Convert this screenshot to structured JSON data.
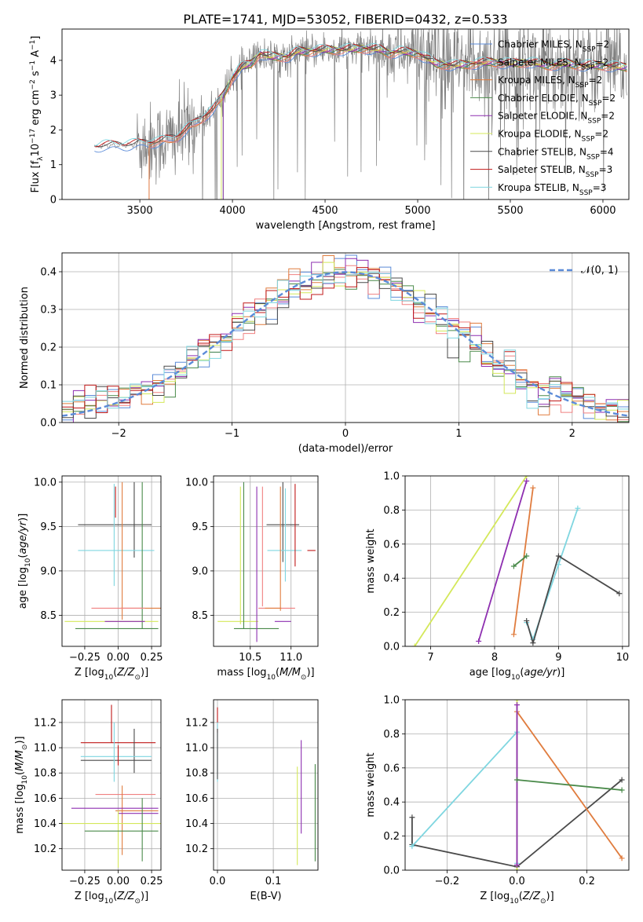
{
  "figure_title": "PLATE=1741, MJD=53052, FIBERID=0432, z=0.533",
  "colors": {
    "Chabrier MILES": "#5b8bd8",
    "Salpeter MILES": "#f08080",
    "Kroupa MILES": "#e07c3e",
    "Chabrier ELODIE": "#4a8a4a",
    "Salpeter ELODIE": "#8e2fb0",
    "Kroupa ELODIE": "#d4e85a",
    "Chabrier STELIB": "#4a4a4a",
    "Salpeter STELIB": "#c01818",
    "Kroupa STELIB": "#7fd6e0",
    "data": "#808080",
    "normal": "#5b8bd8"
  },
  "chart_data": [
    {
      "id": "spectrum",
      "type": "line",
      "title": "PLATE=1741, MJD=53052, FIBERID=0432, z=0.533",
      "xlabel": "wavelength [Angstrom, rest frame]",
      "ylabel": "Flux [f_λ 10^-17 erg cm^-2 s^-1 A^-1]",
      "xlim": [
        3080,
        6140
      ],
      "ylim": [
        0,
        4.9
      ],
      "xticks": [
        3500,
        4000,
        4500,
        5000,
        5500,
        6000
      ],
      "yticks": [
        0,
        1,
        2,
        3,
        4
      ],
      "grid": false,
      "legend": "top-right",
      "legend_entries": [
        "Chabrier MILES, N_SSP=2",
        "Salpeter MILES, N_SSP=2",
        "Kroupa MILES, N_SSP=2",
        "Chabrier ELODIE, N_SSP=2",
        "Salpeter ELODIE, N_SSP=2",
        "Kroupa ELODIE, N_SSP=2",
        "Chabrier STELIB, N_SSP=4",
        "Salpeter STELIB, N_SSP=3",
        "Kroupa STELIB, N_SSP=3"
      ],
      "model_continuum": [
        [
          3260,
          1.5
        ],
        [
          3300,
          1.55
        ],
        [
          3400,
          1.55
        ],
        [
          3500,
          1.6
        ],
        [
          3600,
          1.65
        ],
        [
          3700,
          1.8
        ],
        [
          3800,
          2.2
        ],
        [
          3900,
          2.6
        ],
        [
          3950,
          3.0
        ],
        [
          4000,
          3.5
        ],
        [
          4050,
          3.8
        ],
        [
          4100,
          3.9
        ],
        [
          4150,
          4.2
        ],
        [
          4200,
          4.1
        ],
        [
          4300,
          4.1
        ],
        [
          4350,
          4.25
        ],
        [
          4400,
          4.25
        ],
        [
          4500,
          4.3
        ],
        [
          4600,
          4.3
        ],
        [
          4700,
          4.35
        ],
        [
          4800,
          4.3
        ],
        [
          4850,
          4.2
        ],
        [
          4900,
          4.25
        ],
        [
          5000,
          4.2
        ],
        [
          5100,
          3.9
        ],
        [
          5200,
          3.85
        ],
        [
          5300,
          3.9
        ],
        [
          5400,
          3.95
        ],
        [
          5500,
          3.9
        ],
        [
          5600,
          3.95
        ],
        [
          5700,
          3.85
        ],
        [
          5800,
          3.9
        ],
        [
          5900,
          3.85
        ],
        [
          6000,
          3.85
        ],
        [
          6100,
          3.8
        ]
      ],
      "data_noise_start": 3480
    },
    {
      "id": "residuals",
      "type": "histogram",
      "xlabel": "(data-model)/error",
      "ylabel": "Normed distribution",
      "xlim": [
        -2.5,
        2.5
      ],
      "ylim": [
        0,
        0.45
      ],
      "xticks": [
        -2,
        -1,
        0,
        1,
        2
      ],
      "yticks": [
        0.0,
        0.1,
        0.2,
        0.3,
        0.4
      ],
      "grid": true,
      "legend": "top-right",
      "legend_entries": [
        "𝒩(0, 1)"
      ],
      "bin_width": 0.1,
      "bins_from": -2.5,
      "reference_curve": "normal(0,1)"
    },
    {
      "id": "age_vs_Z",
      "type": "errorbar",
      "xlabel": "Z [log10(Z/Z⊙)]",
      "ylabel": "age  [log10(age/yr)]",
      "xlim": [
        -0.42,
        0.32
      ],
      "ylim": [
        8.15,
        10.07
      ],
      "xticks": [
        -0.25,
        0.0,
        0.25
      ],
      "yticks": [
        8.5,
        9.0,
        9.5,
        10.0
      ],
      "grid": true,
      "points": [
        {
          "model": "Chabrier STELIB",
          "x": 0.0,
          "y": 9.52,
          "xerr": [
            0.3,
            0.25
          ],
          "yerr": [
            0,
            0
          ]
        },
        {
          "model": "Chabrier STELIB",
          "x": 0.12,
          "y": 9.7,
          "xerr": [
            0,
            0
          ],
          "yerr": [
            0.55,
            0.3
          ]
        },
        {
          "model": "Kroupa STELIB",
          "x": -0.03,
          "y": 9.23,
          "xerr": [
            0.27,
            0.3
          ],
          "yerr": [
            0.4,
            0.75
          ]
        },
        {
          "model": "Salpeter STELIB",
          "x": -0.02,
          "y": 9.9,
          "xerr": [
            0,
            0
          ],
          "yerr": [
            0.3,
            0.05
          ]
        },
        {
          "model": "Chabrier ELODIE",
          "x": 0.18,
          "y": 9.8,
          "xerr": [
            0,
            0
          ],
          "yerr": [
            1.45,
            0.2
          ]
        },
        {
          "model": "Kroupa MILES",
          "x": 0.03,
          "y": 9.9,
          "xerr": [
            0,
            0
          ],
          "yerr": [
            1.45,
            0.1
          ]
        },
        {
          "model": "Kroupa MILES",
          "x": 0.12,
          "y": 8.58,
          "xerr": [
            0.1,
            0.2
          ],
          "yerr": [
            0,
            0
          ]
        },
        {
          "model": "Salpeter MILES",
          "x": 0.0,
          "y": 8.58,
          "xerr": [
            0.2,
            0.2
          ],
          "yerr": [
            0,
            0
          ]
        },
        {
          "model": "Kroupa ELODIE",
          "x": -0.05,
          "y": 8.43,
          "xerr": [
            0.35,
            0.35
          ],
          "yerr": [
            0,
            0
          ]
        },
        {
          "model": "Chabrier ELODIE",
          "x": 0.0,
          "y": 8.35,
          "xerr": [
            0.32,
            0.3
          ],
          "yerr": [
            0,
            0
          ]
        },
        {
          "model": "Salpeter ELODIE",
          "x": 0.0,
          "y": 8.43,
          "xerr": [
            0.1,
            0.2
          ],
          "yerr": [
            0,
            0
          ]
        }
      ]
    },
    {
      "id": "age_vs_mass",
      "type": "errorbar",
      "xlabel": "mass [log10(M/M⊙)]",
      "ylabel": "",
      "xlim": [
        10.05,
        11.33
      ],
      "ylim": [
        8.15,
        10.07
      ],
      "xticks": [
        10.5,
        11.0
      ],
      "yticks": [
        8.5,
        9.0,
        9.5,
        10.0
      ],
      "grid": true,
      "points": [
        {
          "model": "Chabrier STELIB",
          "x": 10.9,
          "y": 9.52,
          "xerr": [
            0.2,
            0.2
          ],
          "yerr": [
            0,
            0
          ]
        },
        {
          "model": "Chabrier STELIB",
          "x": 10.9,
          "y": 9.7,
          "xerr": [
            0,
            0
          ],
          "yerr": [
            0.6,
            0.3
          ]
        },
        {
          "model": "Kroupa STELIB",
          "x": 10.93,
          "y": 9.23,
          "xerr": [
            0.22,
            0.2
          ],
          "yerr": [
            0.35,
            0.7
          ]
        },
        {
          "model": "Salpeter STELIB",
          "x": 11.05,
          "y": 9.6,
          "xerr": [
            0,
            0
          ],
          "yerr": [
            0.55,
            0.38
          ]
        },
        {
          "model": "Salpeter STELIB",
          "x": 11.25,
          "y": 9.23,
          "xerr": [
            0.05,
            0.05
          ],
          "yerr": [
            0,
            0
          ]
        },
        {
          "model": "Kroupa MILES",
          "x": 10.87,
          "y": 9.75,
          "xerr": [
            0,
            0
          ],
          "yerr": [
            1.2,
            0.2
          ]
        },
        {
          "model": "Salpeter MILES",
          "x": 10.8,
          "y": 8.58,
          "xerr": [
            0.2,
            0.25
          ],
          "yerr": [
            0,
            0
          ]
        },
        {
          "model": "Kroupa MILES",
          "x": 10.78,
          "y": 8.58,
          "xerr": [
            0.1,
            0.1
          ],
          "yerr": [
            0,
            0
          ]
        },
        {
          "model": "Kroupa ELODIE",
          "x": 10.5,
          "y": 8.43,
          "xerr": [
            0.4,
            0.1
          ],
          "yerr": [
            0,
            0
          ]
        },
        {
          "model": "Chabrier ELODIE",
          "x": 10.55,
          "y": 8.35,
          "xerr": [
            0.25,
            0.3
          ],
          "yerr": [
            0,
            0
          ]
        },
        {
          "model": "Salpeter ELODIE",
          "x": 10.9,
          "y": 8.43,
          "xerr": [
            0.1,
            0.1
          ],
          "yerr": [
            0,
            0
          ]
        },
        {
          "model": "Kroupa ELODIE",
          "x": 10.38,
          "y": 9.1,
          "xerr": [
            0,
            0
          ],
          "yerr": [
            0.7,
            0.85
          ]
        },
        {
          "model": "Chabrier ELODIE",
          "x": 10.42,
          "y": 9.1,
          "xerr": [
            0,
            0
          ],
          "yerr": [
            0.75,
            0.9
          ]
        },
        {
          "model": "Salpeter ELODIE",
          "x": 10.58,
          "y": 9.1,
          "xerr": [
            0,
            0
          ],
          "yerr": [
            0.9,
            0.85
          ]
        },
        {
          "model": "Salpeter MILES",
          "x": 10.65,
          "y": 9.1,
          "xerr": [
            0,
            0
          ],
          "yerr": [
            0.5,
            0.85
          ]
        }
      ]
    },
    {
      "id": "weight_vs_age",
      "type": "line",
      "xlabel": "age  [log10(age/yr)]",
      "ylabel": "mass weight",
      "xlim": [
        6.6,
        10.1
      ],
      "ylim": [
        0.0,
        1.0
      ],
      "xticks": [
        7,
        8,
        9,
        10
      ],
      "yticks": [
        0.0,
        0.2,
        0.4,
        0.6,
        0.8,
        1.0
      ],
      "grid": true,
      "series": [
        {
          "model": "Kroupa ELODIE",
          "x": [
            6.75,
            8.5
          ],
          "y": [
            0.0,
            1.0
          ]
        },
        {
          "model": "Salpeter ELODIE",
          "x": [
            7.75,
            8.5
          ],
          "y": [
            0.03,
            0.97
          ]
        },
        {
          "model": "Kroupa MILES",
          "x": [
            8.3,
            8.6
          ],
          "y": [
            0.07,
            0.93
          ]
        },
        {
          "model": "Chabrier ELODIE",
          "x": [
            8.3,
            8.5
          ],
          "y": [
            0.47,
            0.53
          ]
        },
        {
          "model": "Kroupa STELIB",
          "x": [
            8.5,
            8.6,
            9.0,
            9.3
          ],
          "y": [
            0.14,
            0.04,
            0.48,
            0.81
          ]
        },
        {
          "model": "Chabrier STELIB",
          "x": [
            8.5,
            8.6,
            9.0,
            9.95
          ],
          "y": [
            0.15,
            0.02,
            0.53,
            0.31
          ]
        }
      ]
    },
    {
      "id": "mass_vs_Z",
      "type": "errorbar",
      "xlabel": "Z [log10(Z/Z⊙)]",
      "ylabel": "mass [log10(M/M⊙)]",
      "xlim": [
        -0.42,
        0.32
      ],
      "ylim": [
        10.03,
        11.38
      ],
      "xticks": [
        -0.25,
        0.0,
        0.25
      ],
      "yticks": [
        10.2,
        10.4,
        10.6,
        10.8,
        11.0,
        11.2
      ],
      "grid": true,
      "points": [
        {
          "model": "Salpeter STELIB",
          "x": -0.05,
          "y": 11.04,
          "xerr": [
            0,
            0
          ],
          "yerr": [
            0,
            0.3
          ]
        },
        {
          "model": "Salpeter STELIB",
          "x": 0.0,
          "y": 11.04,
          "xerr": [
            0.28,
            0.28
          ],
          "yerr": [
            0,
            0
          ]
        },
        {
          "model": "Chabrier STELIB",
          "x": 0.0,
          "y": 10.9,
          "xerr": [
            0.28,
            0.25
          ],
          "yerr": [
            0,
            0
          ]
        },
        {
          "model": "Chabrier STELIB",
          "x": 0.12,
          "y": 10.95,
          "xerr": [
            0,
            0
          ],
          "yerr": [
            0.15,
            0.2
          ]
        },
        {
          "model": "Kroupa STELIB",
          "x": 0.0,
          "y": 10.93,
          "xerr": [
            0.28,
            0.25
          ],
          "yerr": [
            0,
            0
          ]
        },
        {
          "model": "Kroupa STELIB",
          "x": -0.03,
          "y": 10.95,
          "xerr": [
            0,
            0
          ],
          "yerr": [
            0.22,
            0.25
          ]
        },
        {
          "model": "Salpeter STELIB",
          "x": 0.0,
          "y": 10.92,
          "xerr": [
            0,
            0
          ],
          "yerr": [
            0.06,
            0.1
          ]
        },
        {
          "model": "Salpeter MILES",
          "x": 0.03,
          "y": 10.63,
          "xerr": [
            0.2,
            0.25
          ],
          "yerr": [
            0,
            0
          ]
        },
        {
          "model": "Kroupa MILES",
          "x": 0.1,
          "y": 10.5,
          "xerr": [
            0.12,
            0.2
          ],
          "yerr": [
            0,
            0
          ]
        },
        {
          "model": "Kroupa MILES",
          "x": 0.03,
          "y": 10.5,
          "xerr": [
            0,
            0
          ],
          "yerr": [
            0.35,
            0.2
          ]
        },
        {
          "model": "Salpeter ELODIE",
          "x": -0.05,
          "y": 10.52,
          "xerr": [
            0.3,
            0.35
          ],
          "yerr": [
            0,
            0
          ]
        },
        {
          "model": "Salpeter ELODIE",
          "x": 0.1,
          "y": 10.48,
          "xerr": [
            0.1,
            0.2
          ],
          "yerr": [
            0,
            0
          ]
        },
        {
          "model": "Kroupa ELODIE",
          "x": -0.03,
          "y": 10.4,
          "xerr": [
            0.4,
            0.35
          ],
          "yerr": [
            0,
            0
          ]
        },
        {
          "model": "Kroupa ELODIE",
          "x": 0.0,
          "y": 10.3,
          "xerr": [
            0,
            0
          ],
          "yerr": [
            0.25,
            0.2
          ]
        },
        {
          "model": "Chabrier ELODIE",
          "x": 0.05,
          "y": 10.34,
          "xerr": [
            0.3,
            0.25
          ],
          "yerr": [
            0,
            0
          ]
        },
        {
          "model": "Chabrier ELODIE",
          "x": 0.18,
          "y": 10.4,
          "xerr": [
            0,
            0
          ],
          "yerr": [
            0.3,
            0.2
          ]
        }
      ]
    },
    {
      "id": "mass_vs_ebv",
      "type": "errorbar",
      "xlabel": "E(B-V)",
      "ylabel": "",
      "xlim": [
        -0.007,
        0.18
      ],
      "ylim": [
        10.03,
        11.38
      ],
      "xticks": [
        0.0,
        0.1
      ],
      "yticks": [
        10.2,
        10.4,
        10.6,
        10.8,
        11.0,
        11.2
      ],
      "grid": true,
      "points": [
        {
          "model": "Salpeter STELIB",
          "x": 0.0,
          "y": 11.2,
          "xerr": [
            0,
            0
          ],
          "yerr": [
            0.08,
            0.12
          ]
        },
        {
          "model": "Kroupa STELIB",
          "x": 0.0,
          "y": 10.95,
          "xerr": [
            0,
            0
          ],
          "yerr": [
            0.22,
            0.25
          ]
        },
        {
          "model": "Chabrier STELIB",
          "x": 0.0,
          "y": 10.95,
          "xerr": [
            0,
            0
          ],
          "yerr": [
            0.2,
            0.2
          ]
        },
        {
          "model": "Kroupa ELODIE",
          "x": 0.143,
          "y": 10.45,
          "xerr": [
            0,
            0
          ],
          "yerr": [
            0.38,
            0.4
          ]
        },
        {
          "model": "Salpeter ELODIE",
          "x": 0.15,
          "y": 10.7,
          "xerr": [
            0,
            0
          ],
          "yerr": [
            0.38,
            0.36
          ]
        },
        {
          "model": "Chabrier ELODIE",
          "x": 0.175,
          "y": 10.5,
          "xerr": [
            0,
            0
          ],
          "yerr": [
            0.4,
            0.37
          ]
        }
      ]
    },
    {
      "id": "weight_vs_Z",
      "type": "line",
      "xlabel": "Z [log10(Z/Z⊙)]",
      "ylabel": "mass weight",
      "xlim": [
        -0.32,
        0.32
      ],
      "ylim": [
        0.0,
        1.0
      ],
      "xticks": [
        -0.2,
        0.0,
        0.2
      ],
      "yticks": [
        0.0,
        0.2,
        0.4,
        0.6,
        0.8,
        1.0
      ],
      "grid": true,
      "series": [
        {
          "model": "Chabrier STELIB",
          "x": [
            -0.3,
            -0.3,
            0.0,
            0.3
          ],
          "y": [
            0.31,
            0.15,
            0.02,
            0.53
          ]
        },
        {
          "model": "Kroupa STELIB",
          "x": [
            -0.3,
            0.0,
            0.0
          ],
          "y": [
            0.14,
            0.81,
            0.04
          ]
        },
        {
          "model": "Kroupa MILES",
          "x": [
            0.0,
            0.3
          ],
          "y": [
            0.93,
            0.07
          ]
        },
        {
          "model": "Kroupa ELODIE",
          "x": [
            0.0,
            0.0
          ],
          "y": [
            1.0,
            0.0
          ]
        },
        {
          "model": "Salpeter ELODIE",
          "x": [
            0.0,
            0.0
          ],
          "y": [
            0.97,
            0.03
          ]
        },
        {
          "model": "Chabrier ELODIE",
          "x": [
            0.0,
            0.3
          ],
          "y": [
            0.53,
            0.47
          ]
        }
      ]
    }
  ]
}
